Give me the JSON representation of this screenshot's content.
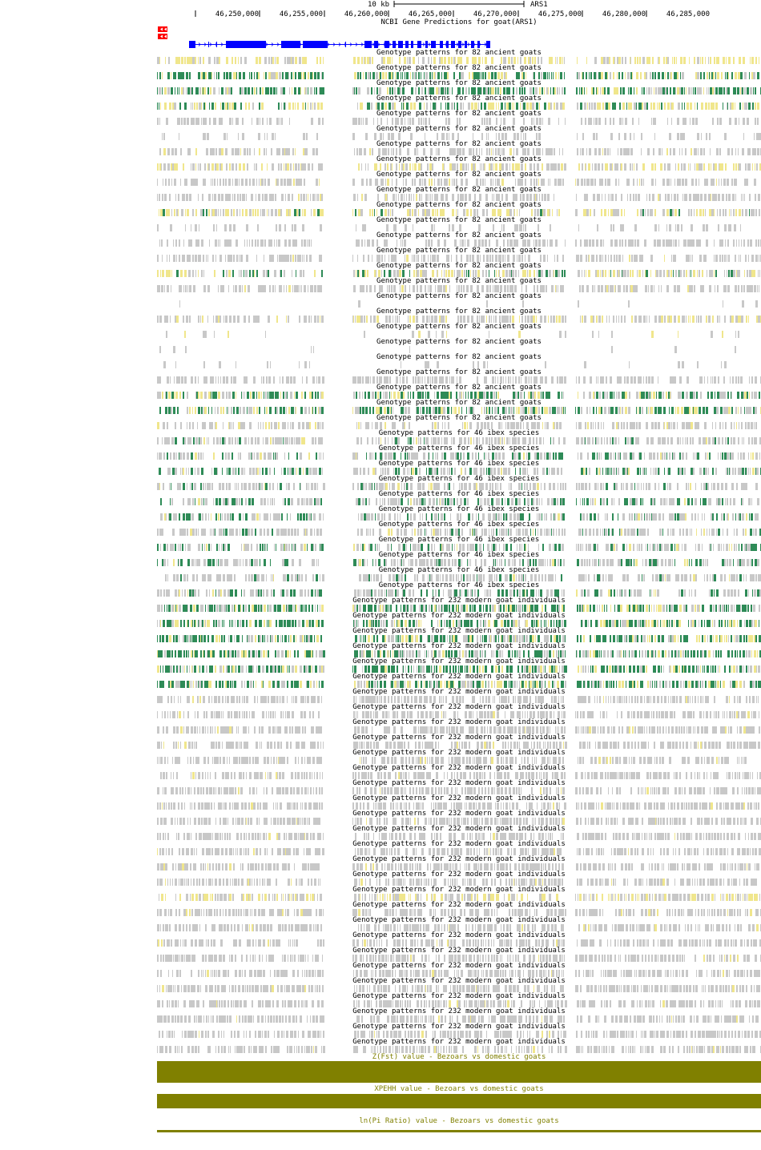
{
  "ruler": {
    "scale_label": "10 kb",
    "assembly_label": "ARS1",
    "positions": [
      "46,250,000",
      "46,255,000",
      "46,260,000",
      "46,265,000",
      "46,270,000",
      "46,275,000",
      "46,280,000",
      "46,285,000"
    ]
  },
  "gene_track": {
    "title": "NCBI Gene Predictions for goat(ARS1)"
  },
  "ancient_track": {
    "title": "Genotype patterns for 82 ancient goats",
    "label_count": 25
  },
  "ibex_track": {
    "title": "Genotype patterns for 46 ibex species",
    "label_count": 11
  },
  "modern_track": {
    "title": "Genotype patterns for 232 modern goat individuals",
    "label_count": 30
  },
  "fst_track": {
    "title": "Z(Fst) value - Bezoars vs domestic goats"
  },
  "xpehh_track": {
    "title": "XPEHH value - Bezoars vs domestic goats"
  },
  "pi_track": {
    "title": "ln(Pi Ratio) value - Bezoars vs domestic goats"
  },
  "colors": {
    "ruler_text": "#000000",
    "gene": "#0000ff",
    "strand_marker": "#ff0000",
    "genotype_gray": "#c8c8c8",
    "genotype_yellow": "#f0e68c",
    "genotype_green": "#2e8b57",
    "selection_track": "#808000"
  }
}
